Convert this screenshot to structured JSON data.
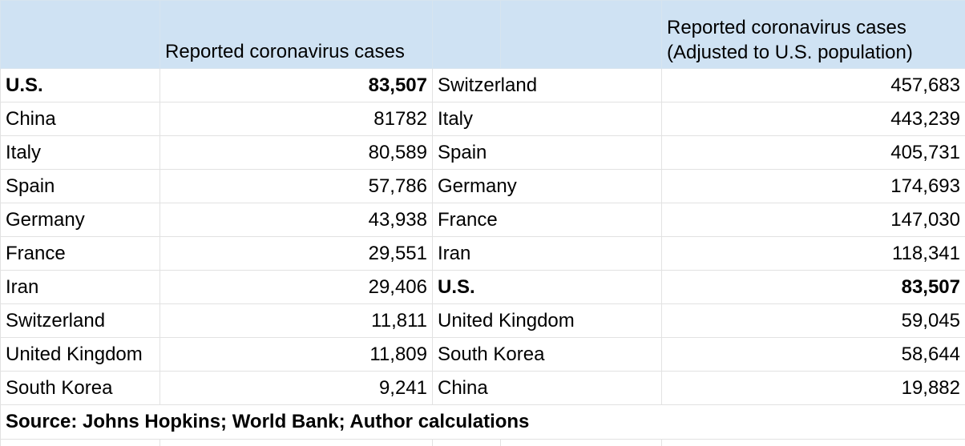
{
  "headers": {
    "left_col1": "",
    "left_col2": "Reported coronavirus cases",
    "right_col1": "",
    "right_col2_line1": "Reported coronavirus cases",
    "right_col2_line2": "(Adjusted to U.S. population)"
  },
  "rows": [
    {
      "left_country": "U.S.",
      "left_value": "83,507",
      "left_bold": true,
      "right_country": "Switzerland",
      "right_value": "457,683",
      "right_bold": false
    },
    {
      "left_country": "China",
      "left_value": "81782",
      "left_bold": false,
      "right_country": "Italy",
      "right_value": "443,239",
      "right_bold": false
    },
    {
      "left_country": "Italy",
      "left_value": "80,589",
      "left_bold": false,
      "right_country": "Spain",
      "right_value": "405,731",
      "right_bold": false
    },
    {
      "left_country": "Spain",
      "left_value": "57,786",
      "left_bold": false,
      "right_country": "Germany",
      "right_value": "174,693",
      "right_bold": false
    },
    {
      "left_country": "Germany",
      "left_value": "43,938",
      "left_bold": false,
      "right_country": "France",
      "right_value": "147,030",
      "right_bold": false
    },
    {
      "left_country": "France",
      "left_value": "29,551",
      "left_bold": false,
      "right_country": "Iran",
      "right_value": "118,341",
      "right_bold": false
    },
    {
      "left_country": "Iran",
      "left_value": "29,406",
      "left_bold": false,
      "right_country": "U.S.",
      "right_value": "83,507",
      "right_bold": true
    },
    {
      "left_country": "Switzerland",
      "left_value": "11,811",
      "left_bold": false,
      "right_country": "United Kingdom",
      "right_value": "59,045",
      "right_bold": false
    },
    {
      "left_country": "United Kingdom",
      "left_value": "11,809",
      "left_bold": false,
      "right_country": "South Korea",
      "right_value": "58,644",
      "right_bold": false
    },
    {
      "left_country": "South Korea",
      "left_value": "9,241",
      "left_bold": false,
      "right_country": "China",
      "right_value": "19,882",
      "right_bold": false
    }
  ],
  "source": "Source: Johns Hopkins; World Bank; Author calculations",
  "colors": {
    "header_fill": "#cfe2f3",
    "grid_line": "#e2e2e2"
  }
}
